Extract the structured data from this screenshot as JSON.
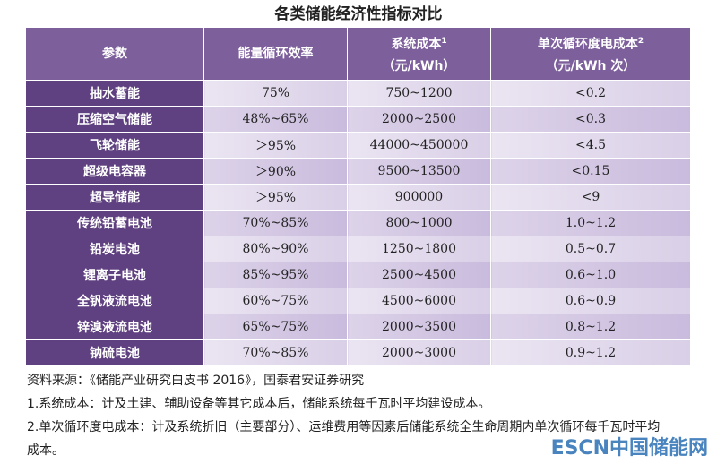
{
  "header": {
    "title": "各类储能经济性指标对比"
  },
  "table": {
    "columns": [
      {
        "label": "参数"
      },
      {
        "label": "能量循环效率"
      },
      {
        "label": "系统成本",
        "sup": "1",
        "unit": "（元/kWh）"
      },
      {
        "label": "单次循环度电成本",
        "sup": "2",
        "unit": "（元/kWh 次）"
      }
    ],
    "rows": [
      [
        "抽水蓄能",
        "75%",
        "750~1200",
        "<0.2"
      ],
      [
        "压缩空气储能",
        "48%~65%",
        "2000~2500",
        "<0.3"
      ],
      [
        "飞轮储能",
        "＞95%",
        "44000~450000",
        "<4.5"
      ],
      [
        "超级电容器",
        "＞90%",
        "9500~13500",
        "<0.15"
      ],
      [
        "超导储能",
        "＞95%",
        "900000",
        "<9"
      ],
      [
        "传统铅蓄电池",
        "70%~85%",
        "800~1000",
        "1.0~1.2"
      ],
      [
        "铅炭电池",
        "80%~90%",
        "1250~1800",
        "0.5~0.7"
      ],
      [
        "锂离子电池",
        "85%~95%",
        "2500~4500",
        "0.6~1.0"
      ],
      [
        "全钒液流电池",
        "60%~75%",
        "4500~6000",
        "0.6~0.9"
      ],
      [
        "锌溴液流电池",
        "65%~75%",
        "2000~3500",
        "0.8~1.2"
      ],
      [
        "钠硫电池",
        "70%~85%",
        "2000~3000",
        "0.9~1.2"
      ]
    ]
  },
  "notes": [
    "资料来源：《储能产业研究白皮书 2016》，国泰君安证券研究",
    "1.系统成本：计及土建、辅助设备等其它成本后，储能系统每千瓦时平均建设成本。",
    "2.单次循环度电成本：计及系统折旧（主要部分）、运维费用等因素后储能系统全生命周期内单次循环每千瓦时平均成本。"
  ],
  "watermark": "ESCN中国储能网"
}
